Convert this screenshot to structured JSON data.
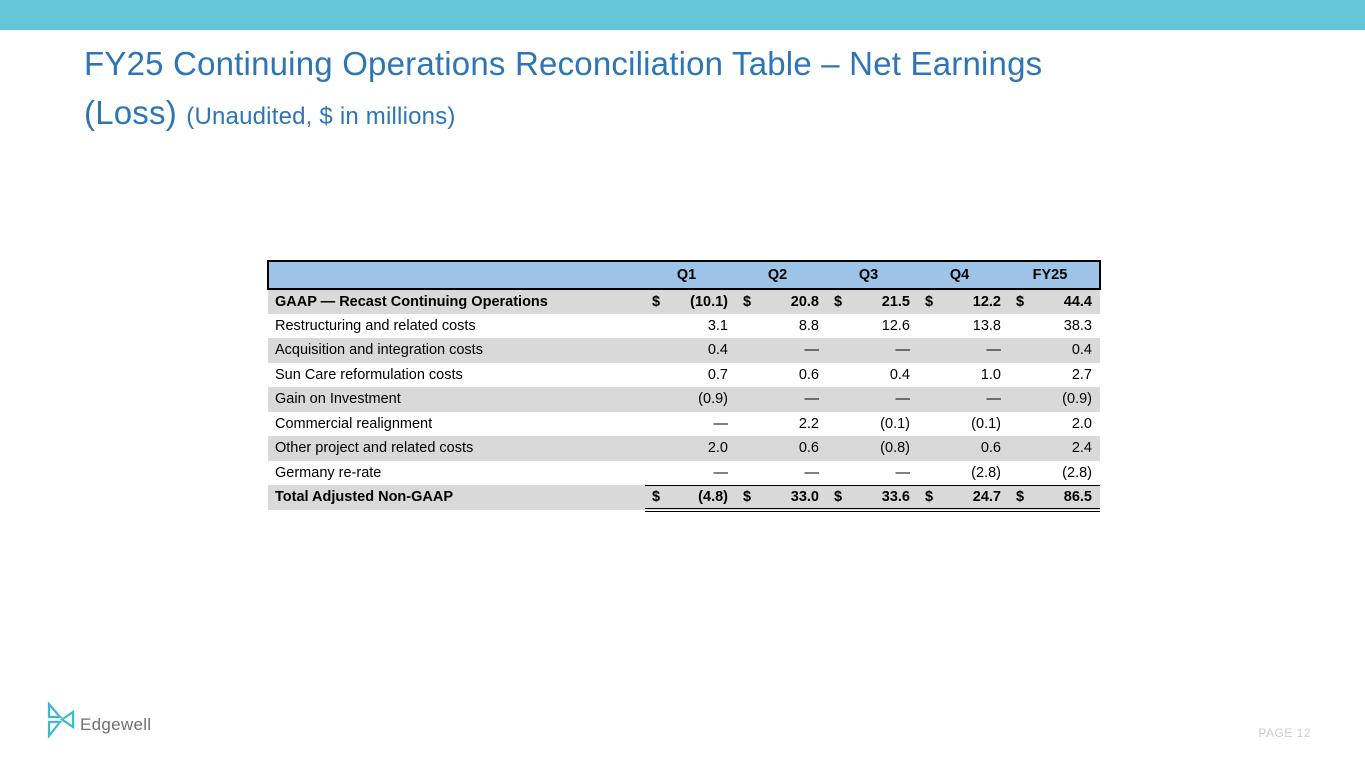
{
  "title": {
    "main": "FY25 Continuing Operations Reconciliation Table – Net Earnings (Loss) ",
    "suffix": "(Unaudited, $ in millions)"
  },
  "table": {
    "header": [
      "",
      "Q1",
      "Q2",
      "Q3",
      "Q4",
      "FY25"
    ],
    "rows": [
      {
        "label": "GAAP — Recast Continuing Operations",
        "bold": true,
        "dollar": true,
        "values": [
          "(10.1)",
          "20.8",
          "21.5",
          "12.2",
          "44.4"
        ]
      },
      {
        "label": "Restructuring and related costs",
        "values": [
          "3.1",
          "8.8",
          "12.6",
          "13.8",
          "38.3"
        ]
      },
      {
        "label": "Acquisition and integration costs",
        "values": [
          "0.4",
          "—",
          "—",
          "—",
          "0.4"
        ]
      },
      {
        "label": "Sun Care reformulation costs",
        "values": [
          "0.7",
          "0.6",
          "0.4",
          "1.0",
          "2.7"
        ]
      },
      {
        "label": "Gain on Investment",
        "values": [
          "(0.9)",
          "—",
          "—",
          "—",
          "(0.9)"
        ]
      },
      {
        "label": "Commercial realignment",
        "values": [
          "—",
          "2.2",
          "(0.1)",
          "(0.1)",
          "2.0"
        ]
      },
      {
        "label": "Other project and related costs",
        "values": [
          "2.0",
          "0.6",
          "(0.8)",
          "0.6",
          "2.4"
        ]
      },
      {
        "label": "Germany re-rate",
        "values": [
          "—",
          "—",
          "—",
          "(2.8)",
          "(2.8)"
        ]
      },
      {
        "label": "Total Adjusted Non-GAAP",
        "bold": true,
        "dollar": true,
        "total": true,
        "values": [
          "(4.8)",
          "33.0",
          "33.6",
          "24.7",
          "86.5"
        ]
      }
    ]
  },
  "footer": {
    "logo_text": "Edgewell",
    "page_label": "PAGE 12"
  },
  "colors": {
    "band_teal": "#63C5D8",
    "title_blue": "#2E75B6",
    "header_bg": "#9DC3E6",
    "stripe_bg": "#D9D9D9",
    "logo_teal": "#3FB9CC",
    "logo_text_gray": "#6E7072",
    "page_gray": "#C9CDD1"
  }
}
